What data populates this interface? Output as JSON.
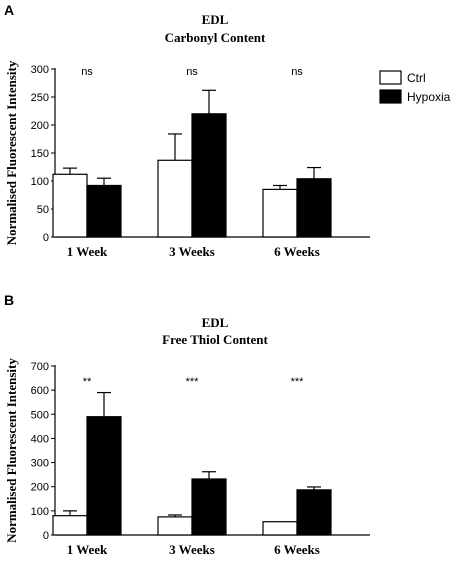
{
  "chart_data": [
    {
      "panel": "A",
      "type": "bar",
      "title": "EDL",
      "subtitle": "Carbonyl Content",
      "ylabel": "Normalised Fluorescent Intensity",
      "xlabel": "",
      "categories": [
        "1 Week",
        "3 Weeks",
        "6 Weeks"
      ],
      "ylim": [
        0,
        300
      ],
      "yticks": [
        0,
        50,
        100,
        150,
        200,
        250,
        300
      ],
      "series": [
        {
          "name": "Ctrl",
          "values": [
            112,
            137,
            85
          ],
          "errors": [
            11,
            47,
            7
          ],
          "color": "#ffffff"
        },
        {
          "name": "Hypoxia",
          "values": [
            92,
            220,
            104
          ],
          "errors": [
            13,
            42,
            20
          ],
          "color": "#000000"
        }
      ],
      "significance": [
        "ns",
        "ns",
        "ns"
      ],
      "legend": "right"
    },
    {
      "panel": "B",
      "type": "bar",
      "title": "EDL",
      "subtitle": "Free Thiol Content",
      "ylabel": "Normalised Fluorescent Intensity",
      "xlabel": "",
      "categories": [
        "1 Week",
        "3 Weeks",
        "6 Weeks"
      ],
      "ylim": [
        0,
        700
      ],
      "yticks": [
        0,
        100,
        200,
        300,
        400,
        500,
        600,
        700
      ],
      "series": [
        {
          "name": "Ctrl",
          "values": [
            80,
            75,
            55
          ],
          "errors": [
            20,
            8,
            0
          ],
          "color": "#ffffff"
        },
        {
          "name": "Hypoxia",
          "values": [
            490,
            232,
            187
          ],
          "errors": [
            100,
            30,
            12
          ],
          "color": "#000000"
        }
      ],
      "significance": [
        "**",
        "***",
        "***"
      ]
    }
  ]
}
